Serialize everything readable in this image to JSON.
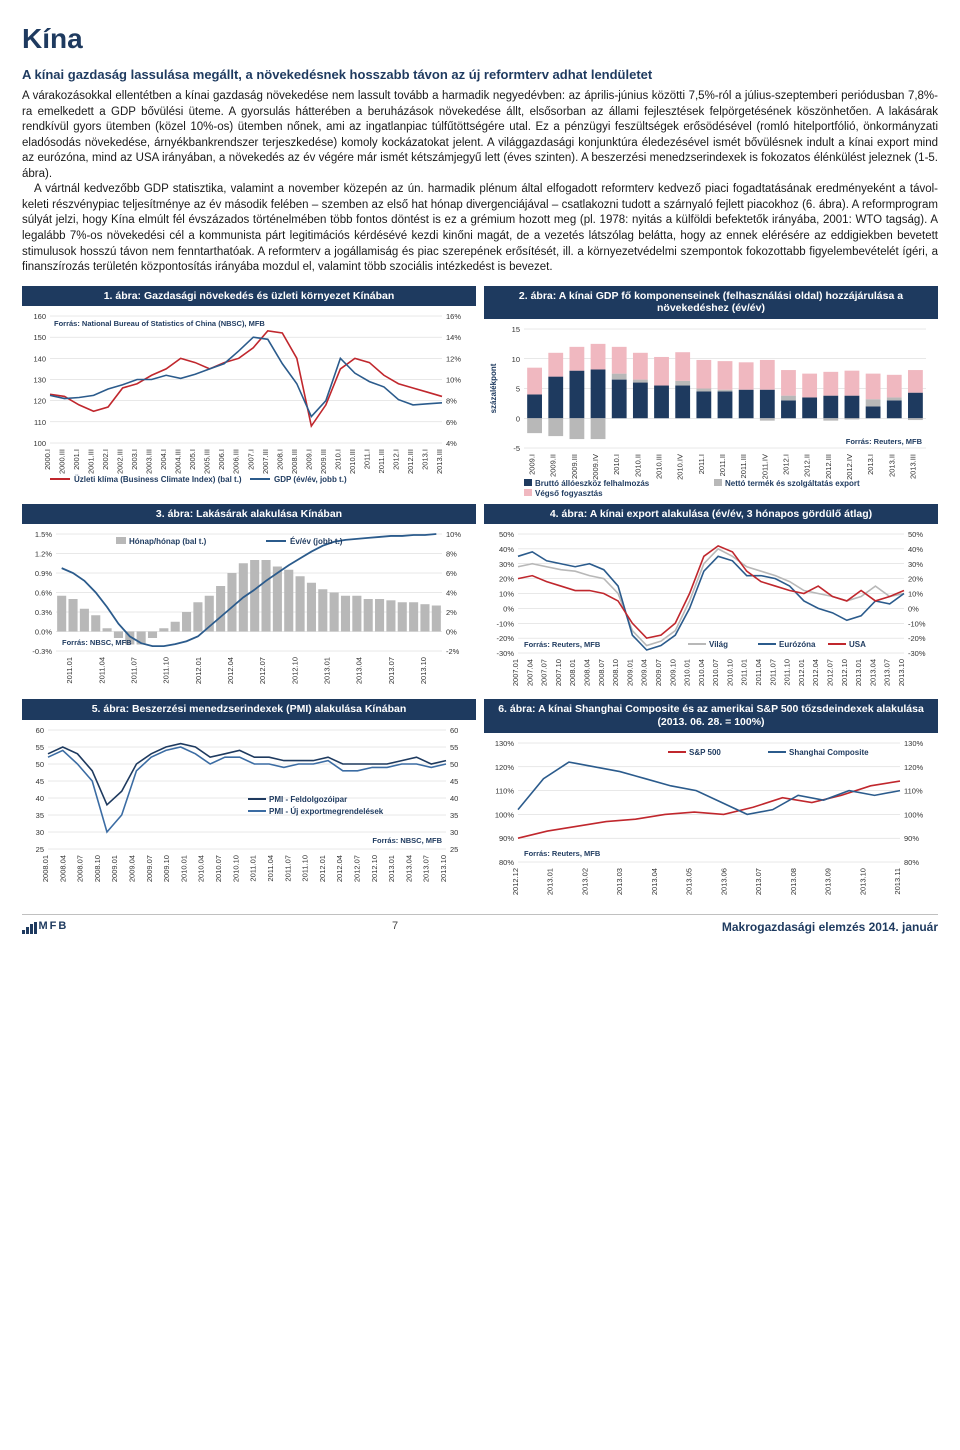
{
  "page": {
    "title": "Kína",
    "subtitle": "A kínai gazdaság lassulása megállt, a növekedésnek hosszabb távon az új reformterv adhat lendületet",
    "body": "A várakozásokkal ellentétben a kínai gazdaság növekedése nem lassult tovább a harmadik negyedévben: az április-június közötti 7,5%-ról a július-szeptemberi periódusban 7,8%-ra emelkedett a GDP bővülési üteme. A gyorsulás hátterében a beruházások növekedése állt, elsősorban az állami fejlesztések felpörgetésének köszönhetően. A lakásárak rendkívül gyors ütemben (közel 10%-os) ütemben nőnek, ami az ingatlanpiac túlfűtöttségére utal. Ez a pénzügyi feszültségek erősödésével (romló hitelportfólió, önkormányzati eladósodás növekedése, árnyékbankrendszer terjeszkedése) komoly kockázatokat jelent. A világgazdasági konjunktúra éledezésével ismét bővülésnek indult a kínai export mind az eurózóna, mind az USA irányában, a növekedés az év végére már ismét kétszámjegyű lett (éves szinten). A beszerzési menedzserindexek is fokozatos élénkülést jeleznek (1-5. ábra).\n\nA vártnál kedvezőbb GDP statisztika, valamint a november közepén az ún. harmadik plénum által elfogadott reformterv kedvező piaci fogadtatásának eredményeként a távol-keleti részvénypiac teljesítménye az év második felében – szemben az első hat hónap divergenciájával – csatlakozni tudott a szárnyaló fejlett piacokhoz (6. ábra). A reformprogram súlyát jelzi, hogy Kína elmúlt fél évszázados történelmében több fontos döntést is ez a grémium hozott meg (pl. 1978: nyitás a külföldi befektetők irányába, 2001: WTO tagság). A legalább 7%-os növekedési cél a kommunista párt legitimációs kérdésévé kezdi kinőni magát, de a vezetés látszólag belátta, hogy az ennek elérésére az eddigiekben bevetett stimulusok hosszú távon nem fenntarthatóak. A reformterv a jogállamiság és piac szerepének erősítését, ill. a környezetvédelmi szempontok fokozottabb figyelembevételét ígéri, a finanszírozás területén központosítás irányába mozdul el, valamint több szociális intézkedést is bevezet."
  },
  "colors": {
    "navy": "#1e3a5f",
    "red": "#c0272d",
    "blue": "#2b5b8c",
    "lightgrey": "#b8b8b8",
    "grid": "#d0d0d0",
    "pink": "#f0b8c0",
    "midblue": "#3b6ca3"
  },
  "charts": {
    "c1": {
      "title": "1. ábra: Gazdasági növekedés és üzleti környezet Kínában",
      "source": "Forrás: National Bureau of Statistics of China (NBSC), MFB",
      "left_ylim": [
        100,
        160
      ],
      "left_ystep": 10,
      "right_ylim": [
        4,
        16
      ],
      "right_ystep": 2,
      "right_suffix": "%",
      "x_labels": [
        "2000.I",
        "2000.III",
        "2001.I",
        "2001.III",
        "2002.I",
        "2002.III",
        "2003.I",
        "2003.III",
        "2004.I",
        "2004.III",
        "2005.I",
        "2005.III",
        "2006.I",
        "2006.III",
        "2007.I",
        "2007.III",
        "2008.I",
        "2008.III",
        "2009.I",
        "2009.III",
        "2010.I",
        "2010.III",
        "2011.I",
        "2011.III",
        "2012.I",
        "2012.III",
        "2013.I",
        "2013.III"
      ],
      "series": [
        {
          "name": "Üzleti klíma (Business Climate Index) (bal t.)",
          "color": "#c0272d",
          "axis": "left",
          "values": [
            123,
            122,
            118,
            115,
            117,
            126,
            128,
            132,
            135,
            140,
            138,
            135,
            138,
            140,
            145,
            153,
            152,
            140,
            108,
            118,
            135,
            140,
            138,
            132,
            128,
            126,
            124,
            122
          ]
        },
        {
          "name": "GDP (év/év, jobb t.)",
          "color": "#2b5b8c",
          "axis": "right",
          "values": [
            8.5,
            8.2,
            8.3,
            8.5,
            9.1,
            9.5,
            10.0,
            10.0,
            10.4,
            10.1,
            10.5,
            11.0,
            11.5,
            12.7,
            14.0,
            13.8,
            11.5,
            9.6,
            6.5,
            8.0,
            12.0,
            10.6,
            9.8,
            9.3,
            8.1,
            7.6,
            7.7,
            7.8
          ]
        }
      ]
    },
    "c2": {
      "title": "2. ábra: A kínai GDP fő komponenseinek (felhasználási oldal) hozzájárulása a növekedéshez (év/év)",
      "source": "Forrás: Reuters, MFB",
      "ylabel": "százalékpont",
      "ylim": [
        -5,
        15
      ],
      "ystep": 5,
      "x_labels": [
        "2009.I",
        "2009.II",
        "2009.III",
        "2009.IV",
        "2010.I",
        "2010.II",
        "2010.III",
        "2010.IV",
        "2011.I",
        "2011.II",
        "2011.III",
        "2011.IV",
        "2012.I",
        "2012.II",
        "2012.III",
        "2012.IV",
        "2013.I",
        "2013.II",
        "2013.III"
      ],
      "stacks": [
        {
          "name": "Bruttó állóeszköz felhalmozás",
          "color": "#1e3a5f",
          "values": [
            4.0,
            7.0,
            8.0,
            8.2,
            6.5,
            6.0,
            5.5,
            5.5,
            4.5,
            4.5,
            4.8,
            4.8,
            3.0,
            3.5,
            3.8,
            3.8,
            2.0,
            3.0,
            4.3
          ]
        },
        {
          "name": "Nettó termék és szolgáltatás export",
          "color": "#b8b8b8",
          "values": [
            -2.5,
            -3.0,
            -3.5,
            -3.5,
            1.0,
            0.5,
            0.0,
            0.8,
            0.5,
            0.3,
            0.0,
            -0.4,
            0.8,
            0.0,
            -0.4,
            -0.2,
            1.2,
            0.5,
            -0.3
          ]
        },
        {
          "name": "Végső fogyasztás",
          "color": "#f0b8c0",
          "values": [
            4.5,
            4.0,
            4.0,
            4.3,
            4.5,
            4.5,
            4.8,
            4.8,
            4.8,
            4.8,
            4.6,
            5.0,
            4.3,
            4.0,
            4.0,
            4.2,
            4.3,
            3.8,
            3.8
          ]
        }
      ]
    },
    "c3": {
      "title": "3. ábra: Lakásárak alakulása Kínában",
      "source": "Forrás: NBSC, MFB",
      "left_ylim": [
        -0.3,
        1.5
      ],
      "left_ystep": 0.3,
      "left_suffix": "%",
      "right_ylim": [
        -2,
        10
      ],
      "right_ystep": 2,
      "right_suffix": "%",
      "x_labels": [
        "2011.01",
        "2011.04",
        "2011.07",
        "2011.10",
        "2012.01",
        "2012.04",
        "2012.07",
        "2012.10",
        "2013.01",
        "2013.04",
        "2013.07",
        "2013.10"
      ],
      "bars": {
        "name": "Hónap/hónap (bal t.)",
        "color": "#b8b8b8",
        "values": [
          0.55,
          0.5,
          0.35,
          0.25,
          0.05,
          -0.1,
          -0.2,
          -0.2,
          -0.1,
          0.05,
          0.15,
          0.3,
          0.45,
          0.55,
          0.7,
          0.9,
          1.05,
          1.1,
          1.1,
          1.0,
          0.95,
          0.85,
          0.75,
          0.65,
          0.6,
          0.55,
          0.55,
          0.5,
          0.5,
          0.48,
          0.45,
          0.45,
          0.42,
          0.4
        ]
      },
      "line": {
        "name": "Év/év (jobb t.)",
        "color": "#2b5b8c",
        "values": [
          6.5,
          6.0,
          5.2,
          4.0,
          2.5,
          0.8,
          -0.5,
          -1.2,
          -1.5,
          -1.5,
          -1.3,
          -1.0,
          -0.5,
          0.5,
          1.5,
          2.5,
          3.5,
          4.3,
          5.2,
          6.0,
          6.8,
          7.5,
          8.2,
          8.8,
          9.2,
          9.4,
          9.5,
          9.6,
          9.7,
          9.8,
          9.8,
          9.9,
          9.9,
          10.0
        ]
      }
    },
    "c4": {
      "title": "4. ábra: A kínai export alakulása (év/év, 3 hónapos gördülő átlag)",
      "source": "Forrás: Reuters, MFB",
      "ylim": [
        -30,
        50
      ],
      "ystep": 10,
      "suffix": "%",
      "x_labels": [
        "2007.01",
        "2007.04",
        "2007.07",
        "2007.10",
        "2008.01",
        "2008.04",
        "2008.07",
        "2008.10",
        "2009.01",
        "2009.04",
        "2009.07",
        "2009.10",
        "2010.01",
        "2010.04",
        "2010.07",
        "2010.10",
        "2011.01",
        "2011.04",
        "2011.07",
        "2011.10",
        "2012.01",
        "2012.04",
        "2012.07",
        "2012.10",
        "2013.01",
        "2013.04",
        "2013.07",
        "2013.10"
      ],
      "series": [
        {
          "name": "Világ",
          "color": "#b8b8b8",
          "values": [
            28,
            30,
            28,
            26,
            25,
            22,
            20,
            10,
            -15,
            -25,
            -22,
            -15,
            5,
            30,
            40,
            35,
            28,
            25,
            22,
            18,
            12,
            10,
            8,
            5,
            8,
            15,
            8,
            10
          ]
        },
        {
          "name": "Eurózóna",
          "color": "#2b5b8c",
          "values": [
            35,
            38,
            32,
            30,
            28,
            30,
            26,
            15,
            -18,
            -28,
            -25,
            -18,
            0,
            25,
            35,
            32,
            22,
            22,
            20,
            15,
            5,
            0,
            -3,
            -8,
            -5,
            5,
            3,
            10
          ]
        },
        {
          "name": "USA",
          "color": "#c0272d",
          "values": [
            20,
            22,
            18,
            15,
            12,
            12,
            10,
            5,
            -10,
            -20,
            -18,
            -10,
            10,
            35,
            42,
            38,
            25,
            18,
            15,
            12,
            10,
            15,
            8,
            5,
            12,
            5,
            8,
            12
          ]
        }
      ]
    },
    "c5": {
      "title": "5. ábra: Beszerzési menedzserindexek (PMI) alakulása Kínában",
      "source": "Forrás: NBSC, MFB",
      "ylim": [
        25,
        60
      ],
      "ystep": 5,
      "x_labels": [
        "2008.01",
        "2008.04",
        "2008.07",
        "2008.10",
        "2009.01",
        "2009.04",
        "2009.07",
        "2009.10",
        "2010.01",
        "2010.04",
        "2010.07",
        "2010.10",
        "2011.01",
        "2011.04",
        "2011.07",
        "2011.10",
        "2012.01",
        "2012.04",
        "2012.07",
        "2012.10",
        "2013.01",
        "2013.04",
        "2013.07",
        "2013.10"
      ],
      "series": [
        {
          "name": "PMI - Feldolgozóipar",
          "color": "#1e3a5f",
          "values": [
            53,
            55,
            53,
            48,
            38,
            42,
            50,
            53,
            55,
            56,
            55,
            52,
            53,
            54,
            52,
            52,
            51,
            51,
            51,
            52,
            50,
            50,
            50,
            50,
            51,
            52,
            50,
            51
          ]
        },
        {
          "name": "PMI - Új exportmegrendelések",
          "color": "#3b6ca3",
          "values": [
            52,
            54,
            50,
            45,
            30,
            35,
            48,
            52,
            54,
            55,
            53,
            50,
            52,
            52,
            50,
            50,
            49,
            50,
            50,
            51,
            48,
            48,
            49,
            49,
            50,
            50,
            49,
            50
          ]
        }
      ]
    },
    "c6": {
      "title": "6. ábra: A kínai Shanghai Composite és az amerikai S&P 500 tőzsdeindexek alakulása (2013. 06. 28. = 100%)",
      "source": "Forrás: Reuters, MFB",
      "ylim": [
        80,
        130
      ],
      "ystep": 10,
      "suffix": "%",
      "x_labels": [
        "2012.12",
        "2013.01",
        "2013.02",
        "2013.03",
        "2013.04",
        "2013.05",
        "2013.06",
        "2013.07",
        "2013.08",
        "2013.09",
        "2013.10",
        "2013.11"
      ],
      "series": [
        {
          "name": "S&P 500",
          "color": "#c0272d",
          "values": [
            90,
            93,
            95,
            97,
            98,
            100,
            101,
            100,
            103,
            107,
            105,
            108,
            112,
            114
          ]
        },
        {
          "name": "Shanghai Composite",
          "color": "#2b5b8c",
          "values": [
            102,
            115,
            122,
            120,
            118,
            115,
            112,
            110,
            105,
            100,
            102,
            108,
            106,
            110,
            108,
            110
          ]
        }
      ]
    }
  },
  "footer": {
    "logo": "MFB",
    "page_number": "7",
    "doc_title": "Makrogazdasági elemzés 2014. január"
  }
}
